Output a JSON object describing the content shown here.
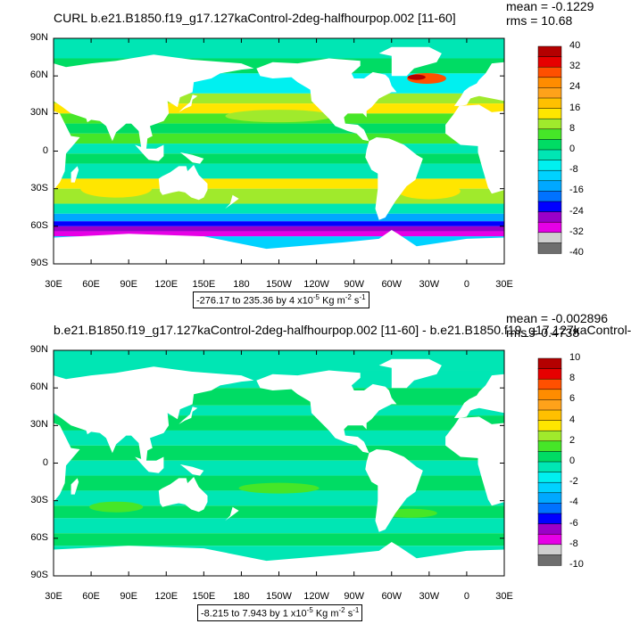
{
  "colorbar_colors": [
    "#6e6e6e",
    "#cfcfcf",
    "#e600e6",
    "#9b00c8",
    "#0000ff",
    "#0072ff",
    "#00a8ff",
    "#00d2ff",
    "#00f0f0",
    "#00e6b4",
    "#00dc64",
    "#46e628",
    "#a0ea2c",
    "#ffe600",
    "#ffc000",
    "#ffa21a",
    "#ff8c00",
    "#ff5000",
    "#e60000",
    "#b40000"
  ],
  "land_color": "#ffffff",
  "panels": [
    {
      "title": "CURL b.e21.B1850.f19_g17.127kaControl-2deg-halfhourpop.002 [11-60]",
      "mean_label": "mean = -0.1229",
      "rms_label": "rms = 10.68",
      "range_text": "-276.17 to 235.36 by 4 x10",
      "range_exp": "-5",
      "range_unit": " Kg m",
      "range_unit_exp": "-2",
      "range_unit_s": " s",
      "range_unit_s_exp": "-1",
      "ylabels": [
        "90N",
        "60N",
        "30N",
        "0",
        "30S",
        "60S",
        "90S"
      ],
      "xlabels": [
        "30E",
        "60E",
        "90E",
        "120E",
        "150E",
        "180",
        "150W",
        "120W",
        "90W",
        "60W",
        "30W",
        "0",
        "30E"
      ],
      "colorbar_labels": [
        "40",
        "32",
        "24",
        "16",
        "8",
        "0",
        "-8",
        "-16",
        "-24",
        "-32",
        "-40"
      ]
    },
    {
      "title": "b.e21.B1850.f19_g17.127kaControl-2deg-halfhourpop.002 [11-60] - b.e21.B1850.f19_g17.127kaControl-",
      "mean_label": "mean = -0.002896",
      "rms_label": "rms = 0.4738",
      "range_text": "-8.215 to 7.943 by 1 x10",
      "range_exp": "-5",
      "range_unit": " Kg m",
      "range_unit_exp": "-2",
      "range_unit_s": " s",
      "range_unit_s_exp": "-1",
      "ylabels": [
        "90N",
        "60N",
        "30N",
        "0",
        "30S",
        "60S",
        "90S"
      ],
      "xlabels": [
        "30E",
        "60E",
        "90E",
        "120E",
        "150E",
        "180",
        "150W",
        "120W",
        "90W",
        "60W",
        "30W",
        "0",
        "30E"
      ],
      "colorbar_labels": [
        "10",
        "8",
        "6",
        "4",
        "2",
        "0",
        "-2",
        "-4",
        "-6",
        "-8",
        "-10"
      ]
    }
  ],
  "chart_data": [
    {
      "type": "heatmap",
      "title": "CURL b.e21.B1850.f19_g17.127kaControl-2deg-halfhourpop.002 [11-60]",
      "x_axis": [
        "30E",
        "60E",
        "90E",
        "120E",
        "150E",
        "180",
        "150W",
        "120W",
        "90W",
        "60W",
        "30W",
        "0",
        "30E"
      ],
      "y_axis": [
        "90N",
        "60N",
        "30N",
        "0",
        "30S",
        "60S",
        "90S"
      ],
      "xlim": [
        30,
        390
      ],
      "ylim": [
        -90,
        90
      ],
      "colorbar_levels": [
        -40,
        -36,
        -32,
        -28,
        -24,
        -20,
        -16,
        -12,
        -8,
        -4,
        0,
        4,
        8,
        12,
        16,
        20,
        24,
        28,
        32,
        36,
        40
      ],
      "mean": -0.1229,
      "rms": 10.68,
      "min": -276.17,
      "max": 235.36,
      "interval": 4,
      "units": "x10^-5 Kg m^-2 s^-1"
    },
    {
      "type": "heatmap",
      "title": "b.e21.B1850.f19_g17.127kaControl-2deg-halfhourpop.002 [11-60] - b.e21.B1850.f19_g17.127kaControl-",
      "x_axis": [
        "30E",
        "60E",
        "90E",
        "120E",
        "150E",
        "180",
        "150W",
        "120W",
        "90W",
        "60W",
        "30W",
        "0",
        "30E"
      ],
      "y_axis": [
        "90N",
        "60N",
        "30N",
        "0",
        "30S",
        "60S",
        "90S"
      ],
      "xlim": [
        30,
        390
      ],
      "ylim": [
        -90,
        90
      ],
      "colorbar_levels": [
        -10,
        -9,
        -8,
        -7,
        -6,
        -5,
        -4,
        -3,
        -2,
        -1,
        0,
        1,
        2,
        3,
        4,
        5,
        6,
        7,
        8,
        9,
        10
      ],
      "mean": -0.002896,
      "rms": 0.4738,
      "min": -8.215,
      "max": 7.943,
      "interval": 1,
      "units": "x10^-5 Kg m^-2 s^-1"
    }
  ]
}
